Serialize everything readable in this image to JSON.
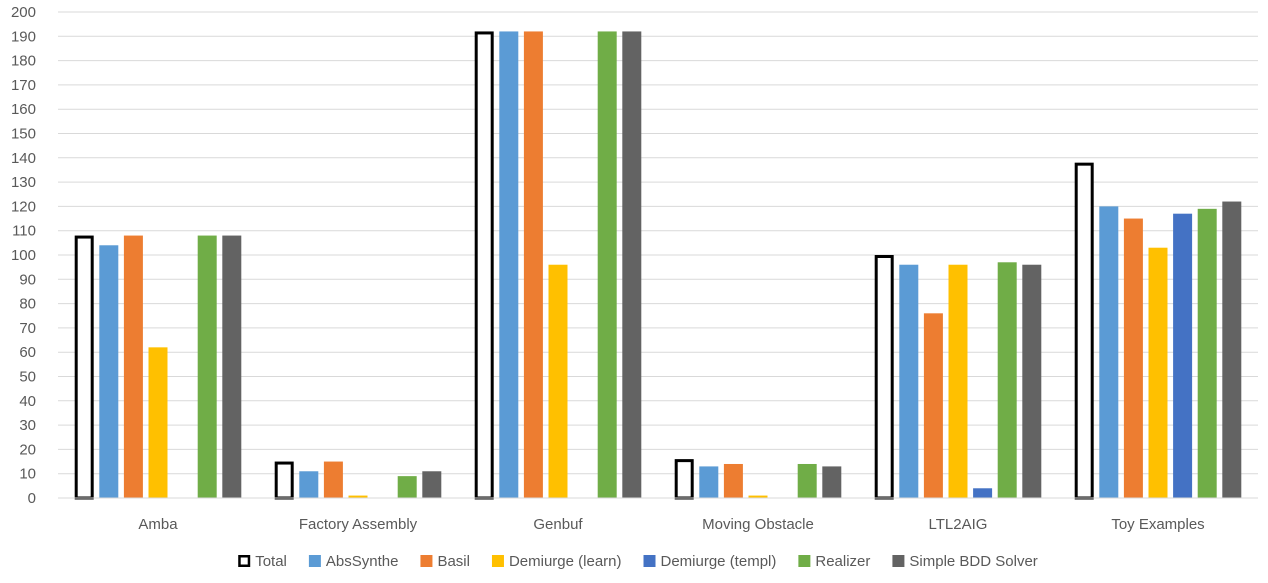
{
  "chart_data": {
    "type": "bar",
    "title": "",
    "xlabel": "",
    "ylabel": "",
    "ylim": [
      0,
      200
    ],
    "ytick_step": 10,
    "grid": true,
    "legend_placement": "bottom",
    "categories": [
      "Amba",
      "Factory Assembly",
      "Genbuf",
      "Moving Obstacle",
      "LTL2AIG",
      "Toy Examples"
    ],
    "series": [
      {
        "name": "Total",
        "color": "#ffffff",
        "stroke": "#000000",
        "values": [
          108,
          15,
          192,
          16,
          100,
          138
        ]
      },
      {
        "name": "AbsSynthe",
        "color": "#5b9bd5",
        "values": [
          104,
          11,
          192,
          13,
          96,
          120
        ]
      },
      {
        "name": "Basil",
        "color": "#ed7d31",
        "values": [
          108,
          15,
          192,
          14,
          76,
          115
        ]
      },
      {
        "name": "Demiurge (learn)",
        "color": "#ffc000",
        "values": [
          62,
          1,
          96,
          1,
          96,
          103
        ]
      },
      {
        "name": "Demiurge (templ)",
        "color": "#4472c4",
        "values": [
          0,
          0,
          0,
          0,
          4,
          117
        ]
      },
      {
        "name": "Realizer",
        "color": "#70ad47",
        "values": [
          108,
          9,
          192,
          14,
          97,
          119
        ]
      },
      {
        "name": "Simple BDD Solver",
        "color": "#636363",
        "values": [
          108,
          11,
          192,
          13,
          96,
          122
        ]
      }
    ]
  }
}
